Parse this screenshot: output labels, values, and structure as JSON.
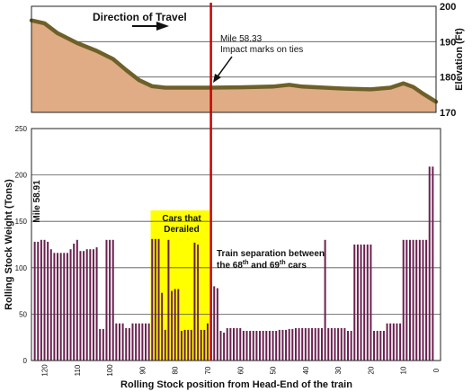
{
  "chart_data": [
    {
      "type": "area",
      "title": "",
      "ylabel": "Elevation (Ft)",
      "yticks": [
        "200",
        "190",
        "180",
        "170"
      ],
      "ylim": [
        170,
        200
      ],
      "xlim": [
        124,
        0
      ],
      "x_reversed": true,
      "grid": true,
      "fill_color": "#dfac85",
      "line_color": "#6e6028",
      "points": [
        {
          "x": 124,
          "y": 196.0
        },
        {
          "x": 120,
          "y": 195.2
        },
        {
          "x": 116,
          "y": 192.4
        },
        {
          "x": 110,
          "y": 189.6
        },
        {
          "x": 104,
          "y": 187.4
        },
        {
          "x": 99,
          "y": 185.1
        },
        {
          "x": 95,
          "y": 182.0
        },
        {
          "x": 91,
          "y": 179.1
        },
        {
          "x": 87,
          "y": 177.4
        },
        {
          "x": 83,
          "y": 177.0
        },
        {
          "x": 75,
          "y": 177.0
        },
        {
          "x": 69,
          "y": 177.0
        },
        {
          "x": 60,
          "y": 177.1
        },
        {
          "x": 50,
          "y": 177.3
        },
        {
          "x": 45,
          "y": 177.8
        },
        {
          "x": 41,
          "y": 177.3
        },
        {
          "x": 30,
          "y": 176.8
        },
        {
          "x": 20,
          "y": 176.5
        },
        {
          "x": 14,
          "y": 177.0
        },
        {
          "x": 10,
          "y": 178.2
        },
        {
          "x": 7,
          "y": 177.2
        },
        {
          "x": 4,
          "y": 175.3
        },
        {
          "x": 0,
          "y": 173.0
        }
      ],
      "annotations": {
        "direction_label": "Direction of Travel",
        "mile_label": "Mile 58.33",
        "impact_label": "Impact marks on ties"
      }
    },
    {
      "type": "bar",
      "title": "",
      "xlabel": "Rolling Stock position from Head-End of the train",
      "ylabel": "Rolling Stock Weight (Tons)",
      "ylim": [
        0,
        250
      ],
      "yticks": [
        "0",
        "50",
        "100",
        "150",
        "200",
        "250"
      ],
      "xticks": [
        "120",
        "110",
        "100",
        "90",
        "80",
        "70",
        "60",
        "50",
        "40",
        "30",
        "20",
        "10",
        "0"
      ],
      "xlim": [
        124,
        0
      ],
      "x_reversed": true,
      "grid": true,
      "bar_color": "#6a2150",
      "positions": [
        1,
        2,
        3,
        4,
        5,
        6,
        7,
        8,
        9,
        10,
        11,
        12,
        13,
        14,
        15,
        16,
        17,
        18,
        19,
        20,
        21,
        22,
        23,
        24,
        25,
        26,
        27,
        28,
        29,
        30,
        31,
        32,
        33,
        34,
        35,
        36,
        37,
        38,
        39,
        40,
        41,
        42,
        43,
        44,
        45,
        46,
        47,
        48,
        49,
        50,
        51,
        52,
        53,
        54,
        55,
        56,
        57,
        58,
        59,
        60,
        61,
        62,
        63,
        64,
        65,
        66,
        67,
        68,
        69,
        70,
        71,
        72,
        73,
        74,
        75,
        76,
        77,
        78,
        79,
        80,
        81,
        82,
        83,
        84,
        85,
        86,
        87,
        88,
        89,
        90,
        91,
        92,
        93,
        94,
        95,
        96,
        97,
        98,
        99,
        100,
        101,
        102,
        103,
        104,
        105,
        106,
        107,
        108,
        109,
        110,
        111,
        112,
        113,
        114,
        115,
        116,
        117,
        118,
        119,
        120,
        121,
        122,
        123
      ],
      "values": [
        209,
        209,
        130,
        130,
        130,
        130,
        130,
        130,
        130,
        130,
        40,
        40,
        40,
        40,
        40,
        32,
        32,
        32,
        32,
        125,
        125,
        125,
        125,
        125,
        125,
        32,
        32,
        35,
        35,
        35,
        35,
        35,
        35,
        130,
        35,
        35,
        35,
        35,
        35,
        35,
        35,
        35,
        35,
        34,
        34,
        33,
        33,
        33,
        32,
        32,
        32,
        32,
        32,
        32,
        32,
        32,
        32,
        32,
        32,
        35,
        35,
        35,
        35,
        35,
        30,
        32,
        78,
        80,
        85,
        40,
        33,
        33,
        125,
        127,
        33,
        33,
        33,
        32,
        77,
        77,
        75,
        130,
        33,
        73,
        131,
        131,
        131,
        40,
        40,
        40,
        40,
        40,
        40,
        35,
        35,
        40,
        40,
        40,
        130,
        130,
        130,
        34,
        34,
        122,
        120,
        120,
        120,
        118,
        118,
        130,
        126,
        120,
        116,
        116,
        116,
        116,
        116,
        120,
        128,
        130,
        130,
        128,
        128
      ],
      "annotations": {
        "derailed_label_line1": "Cars that",
        "derailed_label_line2": "Derailed",
        "derailed_range": [
          70,
          87
        ],
        "derailed_color": "#ffff00",
        "milepost_label": "Mile 58.91",
        "separation_line1": "Train separation between",
        "separation_line2a": "the 68",
        "separation_sup1": "th",
        "separation_line2b": " and 69",
        "separation_sup2": "th",
        "separation_line2c": " cars",
        "impact_position": 69,
        "impact_line_color": "#cc0000"
      }
    }
  ]
}
